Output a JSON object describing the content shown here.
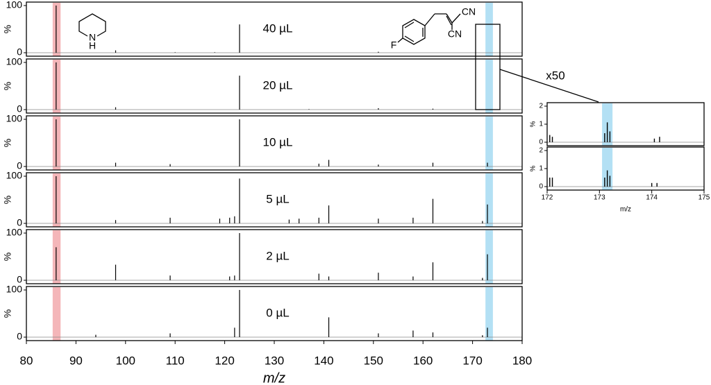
{
  "chart_data": [
    {
      "type": "spectrum",
      "annotation": "40 µL",
      "ylabel": "%",
      "xlim": [
        80,
        180
      ],
      "ylim": [
        0,
        100
      ],
      "yticks": [
        0,
        100
      ],
      "color": "#000000",
      "bands": [
        {
          "range": [
            85.3,
            86.9
          ],
          "color": "#f4b6b9"
        },
        {
          "range": [
            172.6,
            174.1
          ],
          "color": "#b3e0f4"
        }
      ],
      "x": [
        86,
        98,
        110,
        118,
        123,
        151
      ],
      "values": [
        100,
        5,
        1,
        1,
        60,
        2
      ]
    },
    {
      "type": "spectrum",
      "annotation": "20 µL",
      "ylabel": "%",
      "xlim": [
        80,
        180
      ],
      "ylim": [
        0,
        100
      ],
      "yticks": [
        0,
        100
      ],
      "color": "#000000",
      "bands": [
        {
          "range": [
            85.3,
            86.9
          ],
          "color": "#f4b6b9"
        },
        {
          "range": [
            172.6,
            174.1
          ],
          "color": "#b3e0f4"
        }
      ],
      "x": [
        86,
        98,
        123,
        137,
        151,
        162
      ],
      "values": [
        100,
        5,
        72,
        1,
        3,
        2
      ]
    },
    {
      "type": "spectrum",
      "annotation": "10 µL",
      "ylabel": "%",
      "xlim": [
        80,
        180
      ],
      "ylim": [
        0,
        100
      ],
      "yticks": [
        0,
        100
      ],
      "color": "#000000",
      "bands": [
        {
          "range": [
            85.3,
            86.9
          ],
          "color": "#f4b6b9"
        },
        {
          "range": [
            172.6,
            174.1
          ],
          "color": "#b3e0f4"
        }
      ],
      "x": [
        86,
        98,
        109,
        123,
        139,
        141,
        151,
        162,
        173
      ],
      "values": [
        100,
        8,
        5,
        100,
        6,
        14,
        4,
        8,
        8
      ]
    },
    {
      "type": "spectrum",
      "annotation": "5 µL",
      "ylabel": "%",
      "xlim": [
        80,
        180
      ],
      "ylim": [
        0,
        100
      ],
      "yticks": [
        0,
        100
      ],
      "color": "#000000",
      "bands": [
        {
          "range": [
            85.3,
            86.9
          ],
          "color": "#f4b6b9"
        },
        {
          "range": [
            172.6,
            174.1
          ],
          "color": "#b3e0f4"
        }
      ],
      "x": [
        86,
        98,
        109,
        119,
        121,
        122,
        123,
        133,
        135,
        139,
        141,
        151,
        158,
        162,
        172,
        173
      ],
      "values": [
        100,
        7,
        12,
        10,
        12,
        15,
        95,
        8,
        10,
        12,
        38,
        10,
        12,
        52,
        5,
        40
      ]
    },
    {
      "type": "spectrum",
      "annotation": "2 µL",
      "ylabel": "%",
      "xlim": [
        80,
        180
      ],
      "ylim": [
        0,
        100
      ],
      "yticks": [
        0,
        100
      ],
      "color": "#000000",
      "bands": [
        {
          "range": [
            85.3,
            86.9
          ],
          "color": "#f4b6b9"
        },
        {
          "range": [
            172.6,
            174.1
          ],
          "color": "#b3e0f4"
        }
      ],
      "x": [
        86,
        98,
        109,
        121,
        122,
        123,
        139,
        141,
        151,
        158,
        162,
        172,
        173
      ],
      "values": [
        70,
        33,
        10,
        8,
        10,
        100,
        14,
        8,
        16,
        8,
        38,
        5,
        55
      ]
    },
    {
      "type": "spectrum",
      "annotation": "0 µL",
      "ylabel": "%",
      "xlabel": "m/z",
      "xlim": [
        80,
        180
      ],
      "ylim": [
        0,
        100
      ],
      "yticks": [
        0,
        100
      ],
      "xticks": [
        80,
        90,
        100,
        110,
        120,
        130,
        140,
        150,
        160,
        170,
        180
      ],
      "color": "#000000",
      "bands": [
        {
          "range": [
            85.3,
            86.9
          ],
          "color": "#f4b6b9"
        },
        {
          "range": [
            172.6,
            174.1
          ],
          "color": "#b3e0f4"
        }
      ],
      "x": [
        94,
        109,
        122,
        123,
        141,
        151,
        158,
        162,
        172,
        173
      ],
      "values": [
        5,
        8,
        20,
        100,
        42,
        8,
        14,
        10,
        4,
        20
      ]
    },
    {
      "type": "spectrum",
      "annotation": "x50",
      "ylabel": "%",
      "xlim": [
        172,
        175
      ],
      "ylim": [
        0,
        2
      ],
      "yticks": [
        0,
        1,
        2
      ],
      "color": "#000000",
      "bands": [
        {
          "range": [
            173.05,
            173.25
          ],
          "color": "#b3e0f4"
        }
      ],
      "x": [
        172.05,
        172.1,
        173.1,
        173.15,
        173.2,
        174.05,
        174.15
      ],
      "values": [
        0.4,
        0.3,
        0.5,
        1.1,
        0.6,
        0.2,
        0.3
      ]
    },
    {
      "type": "spectrum",
      "ylabel": "%",
      "xlabel": "m/z",
      "xlim": [
        172,
        175
      ],
      "ylim": [
        0,
        2
      ],
      "yticks": [
        0,
        1,
        2
      ],
      "xticks": [
        172,
        173,
        174,
        175
      ],
      "color": "#000000",
      "bands": [
        {
          "range": [
            173.05,
            173.25
          ],
          "color": "#b3e0f4"
        }
      ],
      "x": [
        172.05,
        172.1,
        173.1,
        173.15,
        173.2,
        174.0,
        174.1
      ],
      "values": [
        0.5,
        0.5,
        0.5,
        0.9,
        0.6,
        0.2,
        0.2
      ]
    }
  ],
  "structures": [
    {
      "labels": [
        "N",
        "H"
      ]
    },
    {
      "labels": [
        "F",
        "CN",
        "CN"
      ]
    }
  ]
}
